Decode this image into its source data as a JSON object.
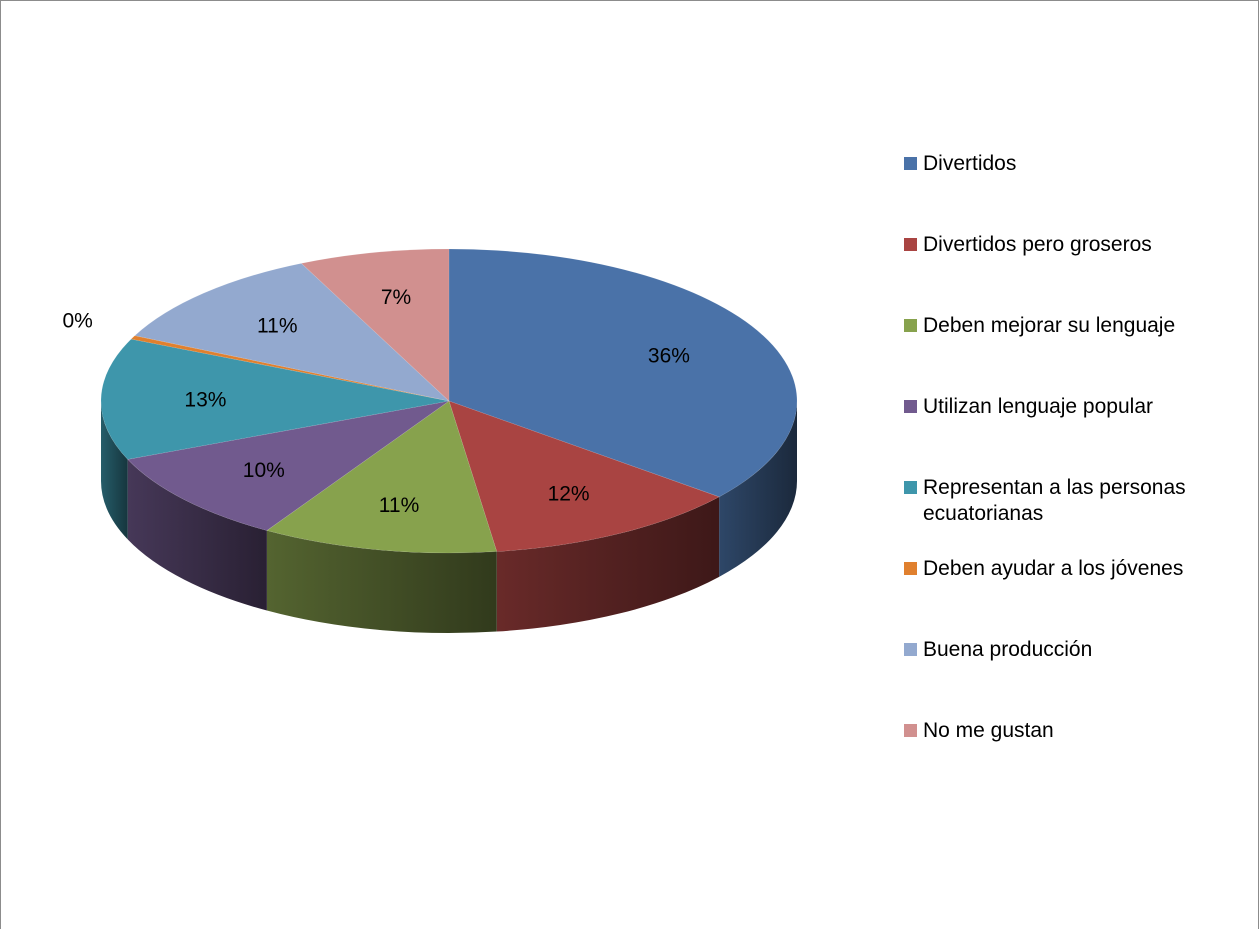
{
  "chart_data": {
    "type": "pie",
    "style": "3d",
    "legend_position": "right",
    "slices": [
      {
        "label": "Divertidos",
        "value": 36,
        "display": "36%",
        "color": "#4A72A8"
      },
      {
        "label": "Divertidos pero groseros",
        "value": 12,
        "display": "12%",
        "color": "#A94442"
      },
      {
        "label": "Deben mejorar su lenguaje",
        "value": 11,
        "display": "11%",
        "color": "#87A24D"
      },
      {
        "label": "Utilizan lenguaje popular",
        "value": 10,
        "display": "10%",
        "color": "#715A8E"
      },
      {
        "label": "Representan a las personas ecuatorianas",
        "value": 13,
        "display": "13%",
        "color": "#3E96AB"
      },
      {
        "label": "Deben ayudar a los jóvenes",
        "value": 0.4,
        "display": "0%",
        "color": "#E0802E"
      },
      {
        "label": "Buena producción",
        "value": 11,
        "display": "11%",
        "color": "#93A9CF"
      },
      {
        "label": "No me gustan",
        "value": 7,
        "display": "7%",
        "color": "#D1908F"
      }
    ]
  }
}
